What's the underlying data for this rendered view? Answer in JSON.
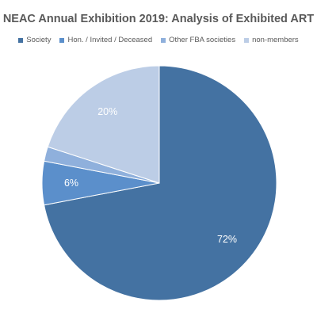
{
  "chart_data": {
    "type": "pie",
    "title": "NEAC Annual Exhibition 2019: Analysis of Exhibited ART",
    "categories": [
      "Society",
      "Hon. / Invited / Deceased",
      "Other FBA societies",
      "non-members"
    ],
    "values": [
      72,
      6,
      2,
      20
    ],
    "data_labels": [
      "72%",
      "6%",
      "",
      "20%"
    ],
    "colors": [
      "#4472a2",
      "#5b8fcb",
      "#8fb0dc",
      "#bccde6"
    ],
    "legend_position": "top"
  }
}
